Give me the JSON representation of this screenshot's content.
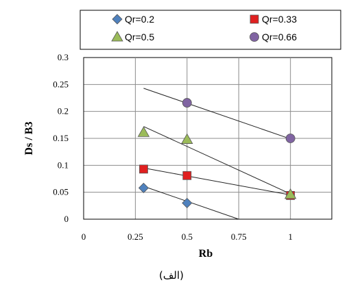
{
  "chart_data": {
    "type": "scatter",
    "xlabel": "Rb",
    "ylabel": "Ds / B3",
    "caption": "(الف)",
    "xlim": [
      0,
      1.2
    ],
    "ylim": [
      0,
      0.3
    ],
    "xticks": [
      "0",
      "0.25",
      "0.5",
      "0.75",
      "1"
    ],
    "yticks": [
      "0",
      "0.05",
      "0.1",
      "0.15",
      "0.2",
      "0.25",
      "0.3"
    ],
    "grid": true,
    "legend_position": "top",
    "series": [
      {
        "name": "Qr=0.2",
        "marker": "diamond",
        "color": "#4f81bd",
        "x": [
          0.29,
          0.5
        ],
        "y": [
          0.058,
          0.03
        ],
        "trend": [
          [
            0.29,
            0.061
          ],
          [
            0.75,
            0.0
          ]
        ]
      },
      {
        "name": "Qr=0.33",
        "marker": "square",
        "color": "#e02020",
        "x": [
          0.29,
          0.5,
          1.0
        ],
        "y": [
          0.093,
          0.081,
          0.044
        ],
        "trend": [
          [
            0.29,
            0.095
          ],
          [
            1.0,
            0.045
          ]
        ]
      },
      {
        "name": "Qr=0.5",
        "marker": "triangle",
        "color": "#9bbb59",
        "x": [
          0.29,
          0.5,
          1.0
        ],
        "y": [
          0.161,
          0.148,
          0.046
        ],
        "trend": [
          [
            0.29,
            0.172
          ],
          [
            1.0,
            0.047
          ]
        ]
      },
      {
        "name": "Qr=0.66",
        "marker": "circle",
        "color": "#8064a2",
        "x": [
          0.5,
          1.0
        ],
        "y": [
          0.216,
          0.15
        ],
        "trend": [
          [
            0.29,
            0.243
          ],
          [
            1.0,
            0.149
          ]
        ]
      }
    ]
  }
}
